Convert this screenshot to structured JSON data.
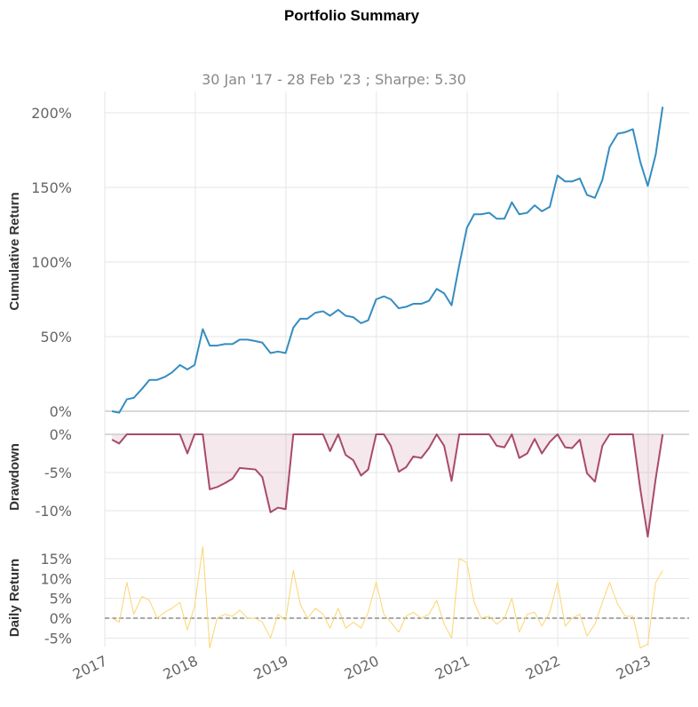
{
  "title": "Portfolio Summary",
  "subtitle": "30 Jan '17 - 28 Feb '23 ;  Sharpe: 5.30",
  "chart_data": [
    {
      "name": "cumulative",
      "type": "line",
      "ylabel": "Cumulative Return",
      "ylim": [
        0,
        2.05
      ],
      "yticks": [
        0,
        0.5,
        1.0,
        1.5,
        2.0
      ],
      "ytick_labels": [
        "0%",
        "50%",
        "100%",
        "150%",
        "200%"
      ],
      "color": "#348dc1",
      "x": [
        "2017-01-30",
        "2017-02-28",
        "2017-03-31",
        "2017-04-28",
        "2017-05-31",
        "2017-06-30",
        "2017-07-31",
        "2017-08-31",
        "2017-09-29",
        "2017-10-31",
        "2017-11-30",
        "2017-12-29",
        "2018-01-31",
        "2018-02-28",
        "2018-03-30",
        "2018-04-30",
        "2018-05-31",
        "2018-06-29",
        "2018-07-31",
        "2018-08-31",
        "2018-09-28",
        "2018-10-31",
        "2018-11-30",
        "2018-12-31",
        "2019-01-31",
        "2019-02-28",
        "2019-03-29",
        "2019-04-30",
        "2019-05-31",
        "2019-06-28",
        "2019-07-31",
        "2019-08-30",
        "2019-09-30",
        "2019-10-31",
        "2019-11-29",
        "2019-12-31",
        "2020-01-31",
        "2020-02-28",
        "2020-03-31",
        "2020-04-30",
        "2020-05-29",
        "2020-06-30",
        "2020-07-31",
        "2020-08-31",
        "2020-09-30",
        "2020-10-30",
        "2020-11-30",
        "2020-12-31",
        "2021-01-29",
        "2021-02-26",
        "2021-03-31",
        "2021-04-30",
        "2021-05-31",
        "2021-06-30",
        "2021-07-30",
        "2021-08-31",
        "2021-09-30",
        "2021-10-29",
        "2021-11-30",
        "2021-12-31",
        "2022-01-31",
        "2022-02-28",
        "2022-03-31",
        "2022-04-29",
        "2022-05-31",
        "2022-06-30",
        "2022-07-29",
        "2022-08-31",
        "2022-09-30",
        "2022-10-31",
        "2022-11-30",
        "2022-12-30",
        "2023-01-31",
        "2023-02-28"
      ],
      "y": [
        0.0,
        -0.01,
        0.08,
        0.09,
        0.15,
        0.21,
        0.21,
        0.23,
        0.26,
        0.31,
        0.28,
        0.31,
        0.55,
        0.44,
        0.44,
        0.45,
        0.45,
        0.48,
        0.48,
        0.47,
        0.46,
        0.39,
        0.4,
        0.39,
        0.56,
        0.62,
        0.62,
        0.66,
        0.67,
        0.64,
        0.68,
        0.64,
        0.63,
        0.59,
        0.61,
        0.75,
        0.77,
        0.75,
        0.69,
        0.7,
        0.72,
        0.72,
        0.74,
        0.82,
        0.79,
        0.71,
        0.98,
        1.23,
        1.32,
        1.32,
        1.33,
        1.29,
        1.29,
        1.4,
        1.32,
        1.33,
        1.38,
        1.34,
        1.37,
        1.58,
        1.54,
        1.54,
        1.56,
        1.45,
        1.43,
        1.55,
        1.77,
        1.86,
        1.87,
        1.89,
        1.67,
        1.51,
        1.72,
        2.04
      ]
    },
    {
      "name": "drawdown",
      "type": "area",
      "ylabel": "Drawdown",
      "ylim": [
        -0.135,
        0.0
      ],
      "yticks": [
        0,
        -0.05,
        -0.1
      ],
      "ytick_labels": [
        "0%",
        "-5%",
        "-10%"
      ],
      "color": "#a94a6a",
      "y": [
        -0.007,
        -0.012,
        0.0,
        0.0,
        0.0,
        0.0,
        0.0,
        0.0,
        0.0,
        0.0,
        -0.025,
        0.0,
        0.0,
        -0.072,
        -0.069,
        -0.064,
        -0.058,
        -0.044,
        -0.045,
        -0.046,
        -0.056,
        -0.102,
        -0.096,
        -0.098,
        0.0,
        0.0,
        0.0,
        0.0,
        0.0,
        -0.022,
        0.0,
        -0.027,
        -0.034,
        -0.054,
        -0.046,
        0.0,
        0.0,
        -0.015,
        -0.049,
        -0.043,
        -0.029,
        -0.031,
        -0.018,
        0.0,
        -0.015,
        -0.061,
        0.0,
        0.0,
        0.0,
        0.0,
        0.0,
        -0.015,
        -0.017,
        0.0,
        -0.031,
        -0.025,
        -0.006,
        -0.025,
        -0.01,
        0.0,
        -0.017,
        -0.018,
        -0.007,
        -0.051,
        -0.062,
        -0.015,
        0.0,
        0.0,
        0.0,
        0.0,
        -0.072,
        -0.134,
        -0.058,
        0.0
      ]
    },
    {
      "name": "daily",
      "type": "line",
      "ylabel": "Daily Return",
      "ylim": [
        -0.075,
        0.18
      ],
      "yticks": [
        -0.05,
        0,
        0.05,
        0.1,
        0.15
      ],
      "ytick_labels": [
        "-5%",
        "0%",
        "5%",
        "10%",
        "15%"
      ],
      "color": "#fbd56e",
      "y": [
        0.0,
        -0.01,
        0.09,
        0.01,
        0.055,
        0.045,
        0.0,
        0.015,
        0.025,
        0.04,
        -0.03,
        0.03,
        0.18,
        -0.075,
        0.0,
        0.01,
        0.005,
        0.02,
        0.0,
        0.0,
        -0.01,
        -0.05,
        0.01,
        -0.005,
        0.12,
        0.035,
        0.0,
        0.025,
        0.01,
        -0.025,
        0.025,
        -0.025,
        -0.01,
        -0.025,
        0.015,
        0.09,
        0.01,
        -0.01,
        -0.035,
        0.005,
        0.015,
        0.0,
        0.01,
        0.045,
        -0.015,
        -0.05,
        0.15,
        0.14,
        0.04,
        0.0,
        0.005,
        -0.015,
        0.0,
        0.05,
        -0.035,
        0.01,
        0.015,
        -0.02,
        0.015,
        0.09,
        -0.02,
        0.0,
        0.01,
        -0.045,
        -0.015,
        0.04,
        0.09,
        0.035,
        0.005,
        0.005,
        -0.075,
        -0.065,
        0.09,
        0.12
      ]
    }
  ],
  "x_axis": {
    "ticks": [
      "2017-01-01",
      "2018-01-01",
      "2019-01-01",
      "2020-01-01",
      "2021-01-01",
      "2022-01-01",
      "2023-01-01"
    ],
    "tick_labels": [
      "2017",
      "2018",
      "2019",
      "2020",
      "2021",
      "2022",
      "2023"
    ]
  }
}
